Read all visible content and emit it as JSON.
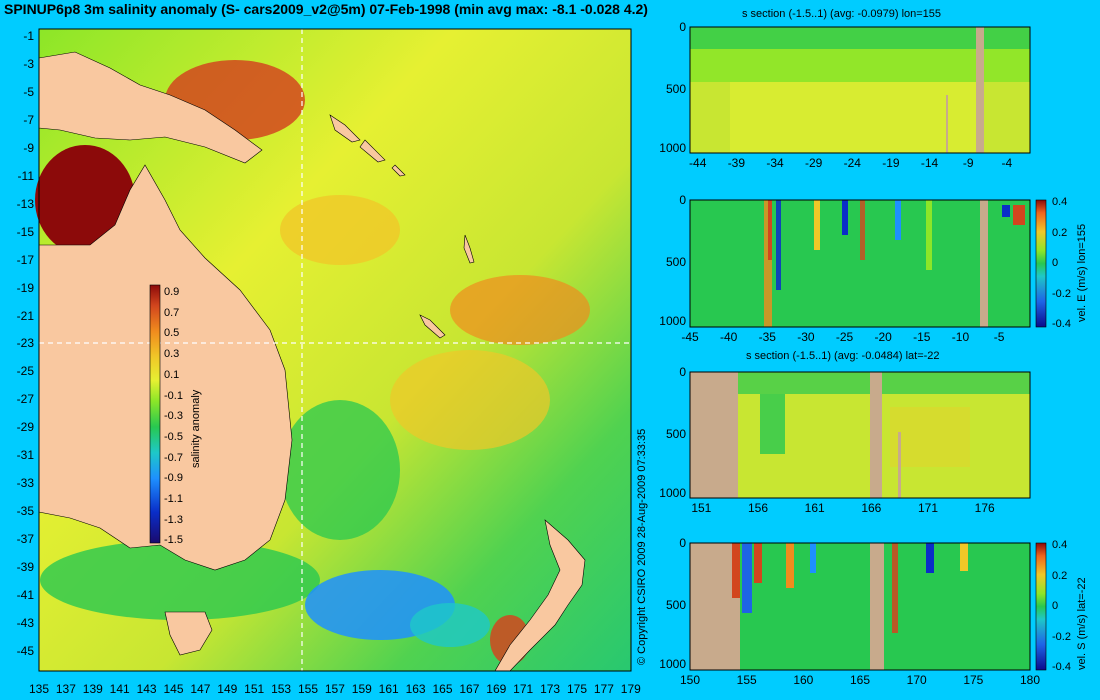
{
  "title": "SPINUP6p8 3m salinity anomaly (S- cars2009_v2@5m) 07-Feb-1998 (min avg max: -8.1 -0.028 4.2)",
  "copyright": "© Copyright CSIRO 2009   28-Aug-2009 07:33:35",
  "colors": {
    "background": "#00ccff",
    "land": "#f9c8a0",
    "section_land": "#c8aa8c",
    "palette": [
      "#1a0a6e",
      "#0a2ec8",
      "#1e90ff",
      "#1ec8c8",
      "#28c850",
      "#8ce628",
      "#e6f032",
      "#f0c828",
      "#f08c1e",
      "#d2461e",
      "#8c0a0a"
    ]
  },
  "chart_data": [
    {
      "id": "map",
      "type": "heatmap",
      "title": "SPINUP6p8 3m salinity anomaly (S- cars2009_v2@5m) 07-Feb-1998 (min avg max: -8.1 -0.028 4.2)",
      "x_ticks": [
        "135",
        "137",
        "139",
        "141",
        "143",
        "145",
        "147",
        "149",
        "151",
        "153",
        "155",
        "157",
        "159",
        "161",
        "163",
        "165",
        "167",
        "169",
        "171",
        "173",
        "175",
        "177",
        "179"
      ],
      "y_ticks": [
        "-1",
        "-3",
        "-5",
        "-7",
        "-9",
        "-11",
        "-13",
        "-15",
        "-17",
        "-19",
        "-21",
        "-23",
        "-25",
        "-27",
        "-29",
        "-31",
        "-33",
        "-35",
        "-37",
        "-39",
        "-41",
        "-43",
        "-45"
      ],
      "xlim": [
        135,
        180
      ],
      "ylim": [
        -45,
        0
      ],
      "crosshair": {
        "lon": 155,
        "lat": -22
      },
      "colorbar": {
        "label": "salinity anomaly",
        "ticks": [
          "0.9",
          "0.7",
          "0.5",
          "0.3",
          "0.1",
          "-0.1",
          "-0.3",
          "-0.5",
          "-0.7",
          "-0.9",
          "-1.1",
          "-1.3",
          "-1.5"
        ],
        "range": [
          -1.6,
          1.0
        ]
      }
    },
    {
      "id": "s_section_lon",
      "type": "heatmap",
      "title": "s section (-1.5..1) (avg: -0.0979) lon=155",
      "x_ticks": [
        "-44",
        "-39",
        "-34",
        "-29",
        "-24",
        "-19",
        "-14",
        "-9",
        "-4"
      ],
      "xlim": [
        -45,
        -1
      ],
      "y_ticks": [
        "0",
        "500",
        "1000"
      ],
      "ylim": [
        1050,
        0
      ]
    },
    {
      "id": "vel_e_section",
      "type": "heatmap",
      "title": "",
      "x_ticks": [
        "-45",
        "-40",
        "-35",
        "-30",
        "-25",
        "-20",
        "-15",
        "-10",
        "-5"
      ],
      "xlim": [
        -45,
        -1
      ],
      "y_ticks": [
        "0",
        "500",
        "1000"
      ],
      "ylim": [
        1050,
        0
      ],
      "colorbar": {
        "label": "vel. E (m/s) lon=155",
        "ticks": [
          "0.4",
          "0.2",
          "0",
          "-0.2",
          "-0.4"
        ],
        "range": [
          -0.45,
          0.45
        ]
      }
    },
    {
      "id": "s_section_lat",
      "type": "heatmap",
      "title": "s section (-1.5..1) (avg: -0.0484) lat=-22",
      "x_ticks": [
        "151",
        "156",
        "161",
        "166",
        "171",
        "176"
      ],
      "xlim": [
        150,
        180
      ],
      "y_ticks": [
        "0",
        "500",
        "1000"
      ],
      "ylim": [
        1050,
        0
      ]
    },
    {
      "id": "vel_s_section",
      "type": "heatmap",
      "title": "",
      "x_ticks": [
        "150",
        "155",
        "160",
        "165",
        "170",
        "175",
        "180"
      ],
      "xlim": [
        150,
        180
      ],
      "y_ticks": [
        "0",
        "500",
        "1000"
      ],
      "ylim": [
        1050,
        0
      ],
      "colorbar": {
        "label": "vel. S (m/s) lat=-22",
        "ticks": [
          "0.4",
          "0.2",
          "0",
          "-0.2",
          "-0.4"
        ],
        "range": [
          -0.45,
          0.45
        ]
      }
    }
  ]
}
